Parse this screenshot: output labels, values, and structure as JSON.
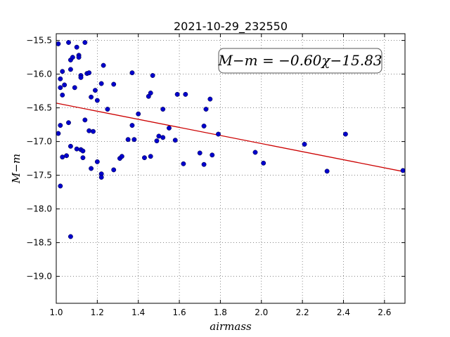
{
  "chart_data": {
    "type": "scatter",
    "title": "2021-10-29_232550",
    "xlabel": "airmass",
    "ylabel": "M−m",
    "xlim": [
      1.0,
      2.7
    ],
    "ylim": [
      -19.4,
      -15.4
    ],
    "y_inverted": true,
    "grid": true,
    "x_ticks": [
      "1.0",
      "1.2",
      "1.4",
      "1.6",
      "1.8",
      "2.0",
      "2.2",
      "2.4",
      "2.6"
    ],
    "y_ticks": [
      "−15.5",
      "−16.0",
      "−16.5",
      "−17.0",
      "−17.5",
      "−18.0",
      "−18.5",
      "−19.0"
    ],
    "x_tick_values": [
      1.0,
      1.2,
      1.4,
      1.6,
      1.8,
      2.0,
      2.2,
      2.4,
      2.6
    ],
    "y_tick_values": [
      -15.5,
      -16.0,
      -16.5,
      -17.0,
      -17.5,
      -18.0,
      -18.5,
      -19.0
    ],
    "marker_color": "#0000cc",
    "fit_color": "#cc0000",
    "annotation": "M−m = −0.60χ−15.83",
    "fit": {
      "slope": -0.6,
      "intercept": -15.83
    },
    "points": [
      [
        1.01,
        -15.55
      ],
      [
        1.02,
        -16.07
      ],
      [
        1.03,
        -15.96
      ],
      [
        1.02,
        -16.2
      ],
      [
        1.03,
        -16.31
      ],
      [
        1.04,
        -16.16
      ],
      [
        1.01,
        -16.88
      ],
      [
        1.02,
        -16.76
      ],
      [
        1.03,
        -17.23
      ],
      [
        1.02,
        -17.66
      ],
      [
        1.06,
        -15.53
      ],
      [
        1.07,
        -15.79
      ],
      [
        1.08,
        -15.75
      ],
      [
        1.07,
        -15.93
      ],
      [
        1.1,
        -15.6
      ],
      [
        1.11,
        -15.72
      ],
      [
        1.11,
        -15.75
      ],
      [
        1.14,
        -15.53
      ],
      [
        1.09,
        -16.2
      ],
      [
        1.12,
        -16.02
      ],
      [
        1.12,
        -16.05
      ],
      [
        1.06,
        -16.72
      ],
      [
        1.07,
        -17.07
      ],
      [
        1.05,
        -17.21
      ],
      [
        1.1,
        -17.11
      ],
      [
        1.12,
        -17.12
      ],
      [
        1.13,
        -17.14
      ],
      [
        1.13,
        -17.24
      ],
      [
        1.14,
        -16.68
      ],
      [
        1.15,
        -15.99
      ],
      [
        1.16,
        -15.98
      ],
      [
        1.17,
        -16.34
      ],
      [
        1.19,
        -16.24
      ],
      [
        1.2,
        -16.39
      ],
      [
        1.16,
        -16.84
      ],
      [
        1.18,
        -16.85
      ],
      [
        1.2,
        -17.3
      ],
      [
        1.17,
        -17.4
      ],
      [
        1.22,
        -17.48
      ],
      [
        1.22,
        -17.53
      ],
      [
        1.07,
        -18.41
      ],
      [
        1.22,
        -16.14
      ],
      [
        1.23,
        -15.87
      ],
      [
        1.25,
        -16.52
      ],
      [
        1.28,
        -16.15
      ],
      [
        1.31,
        -17.25
      ],
      [
        1.32,
        -17.22
      ],
      [
        1.28,
        -17.42
      ],
      [
        1.37,
        -15.98
      ],
      [
        1.37,
        -16.76
      ],
      [
        1.35,
        -16.97
      ],
      [
        1.38,
        -16.97
      ],
      [
        1.4,
        -16.59
      ],
      [
        1.43,
        -17.24
      ],
      [
        1.45,
        -16.33
      ],
      [
        1.46,
        -16.28
      ],
      [
        1.46,
        -17.22
      ],
      [
        1.47,
        -16.02
      ],
      [
        1.49,
        -16.99
      ],
      [
        1.5,
        -16.92
      ],
      [
        1.52,
        -16.94
      ],
      [
        1.52,
        -16.52
      ],
      [
        1.55,
        -16.8
      ],
      [
        1.59,
        -16.3
      ],
      [
        1.58,
        -16.98
      ],
      [
        1.62,
        -17.33
      ],
      [
        1.63,
        -16.3
      ],
      [
        1.7,
        -17.17
      ],
      [
        1.72,
        -16.77
      ],
      [
        1.73,
        -16.52
      ],
      [
        1.72,
        -17.34
      ],
      [
        1.75,
        -16.37
      ],
      [
        1.76,
        -17.2
      ],
      [
        1.79,
        -16.89
      ],
      [
        1.97,
        -17.16
      ],
      [
        2.01,
        -17.32
      ],
      [
        2.21,
        -17.04
      ],
      [
        2.32,
        -17.44
      ],
      [
        2.41,
        -16.89
      ],
      [
        2.69,
        -17.43
      ]
    ]
  }
}
